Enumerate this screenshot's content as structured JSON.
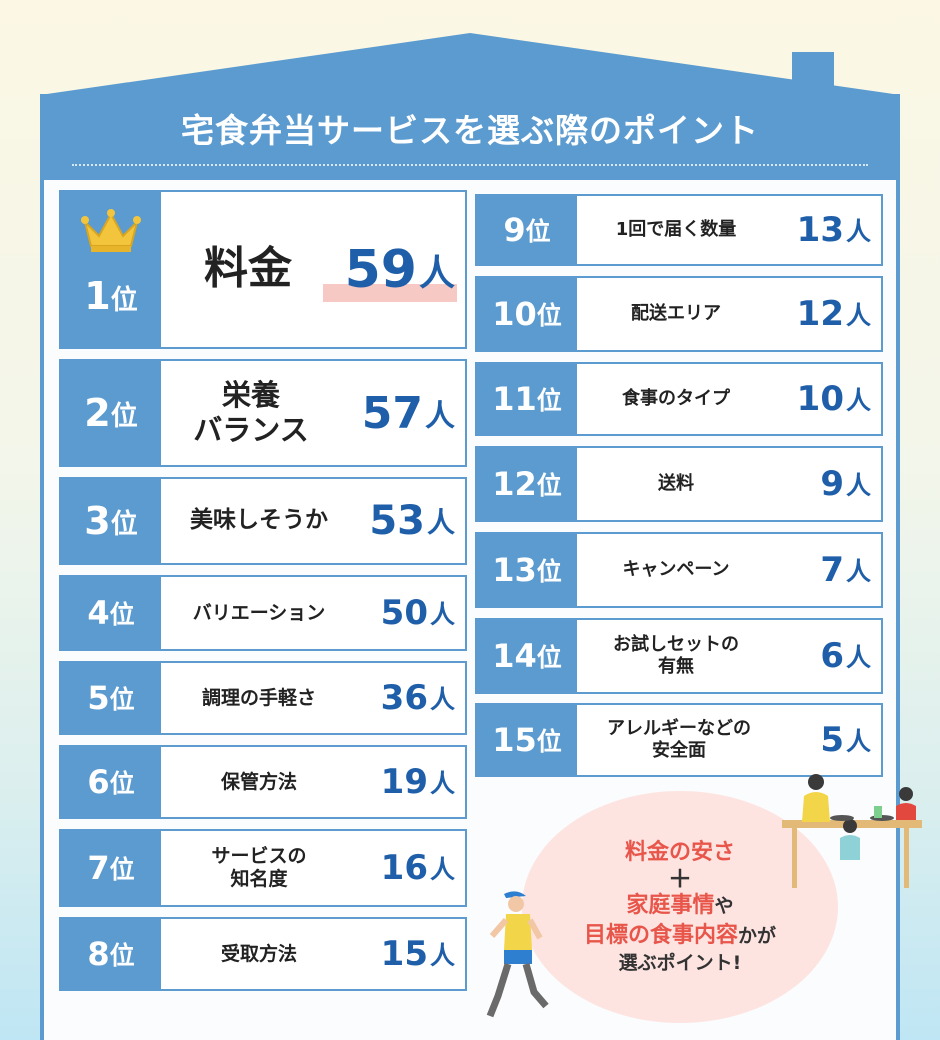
{
  "title": "宅食弁当サービスを選ぶ際のポイント",
  "rank_suffix": "位",
  "count_unit": "人",
  "colors": {
    "accent": "#5b9bd0",
    "count": "#1f5fa9",
    "highlight": "#f7c9c4",
    "bubble": "#fde4e1",
    "bubble_red": "#e8554a"
  },
  "left_ranks": [
    {
      "rank": "1",
      "item": "料金",
      "count": "59"
    },
    {
      "rank": "2",
      "item": "栄養\nバランス",
      "count": "57"
    },
    {
      "rank": "3",
      "item": "美味しそうか",
      "count": "53"
    },
    {
      "rank": "4",
      "item": "バリエーション",
      "count": "50"
    },
    {
      "rank": "5",
      "item": "調理の手軽さ",
      "count": "36"
    },
    {
      "rank": "6",
      "item": "保管方法",
      "count": "19"
    },
    {
      "rank": "7",
      "item": "サービスの\n知名度",
      "count": "16"
    },
    {
      "rank": "8",
      "item": "受取方法",
      "count": "15"
    }
  ],
  "right_ranks": [
    {
      "rank": "9",
      "item": "1回で届く数量",
      "count": "13"
    },
    {
      "rank": "10",
      "item": "配送エリア",
      "count": "12"
    },
    {
      "rank": "11",
      "item": "食事のタイプ",
      "count": "10"
    },
    {
      "rank": "12",
      "item": "送料",
      "count": "9"
    },
    {
      "rank": "13",
      "item": "キャンペーン",
      "count": "7"
    },
    {
      "rank": "14",
      "item": "お試しセットの\n有無",
      "count": "6"
    },
    {
      "rank": "15",
      "item": "アレルギーなどの\n安全面",
      "count": "5"
    }
  ],
  "bubble": {
    "line1": "料金の安さ",
    "plus": "＋",
    "line2_red": "家庭事情",
    "line2_dark": "や",
    "line3_red": "目標の食事内容",
    "line3_dark": "かが",
    "line4": "選ぶポイント!"
  },
  "icons": {
    "crown": "crown-icon",
    "family": "family-dining-illustration",
    "runner": "runner-illustration"
  }
}
